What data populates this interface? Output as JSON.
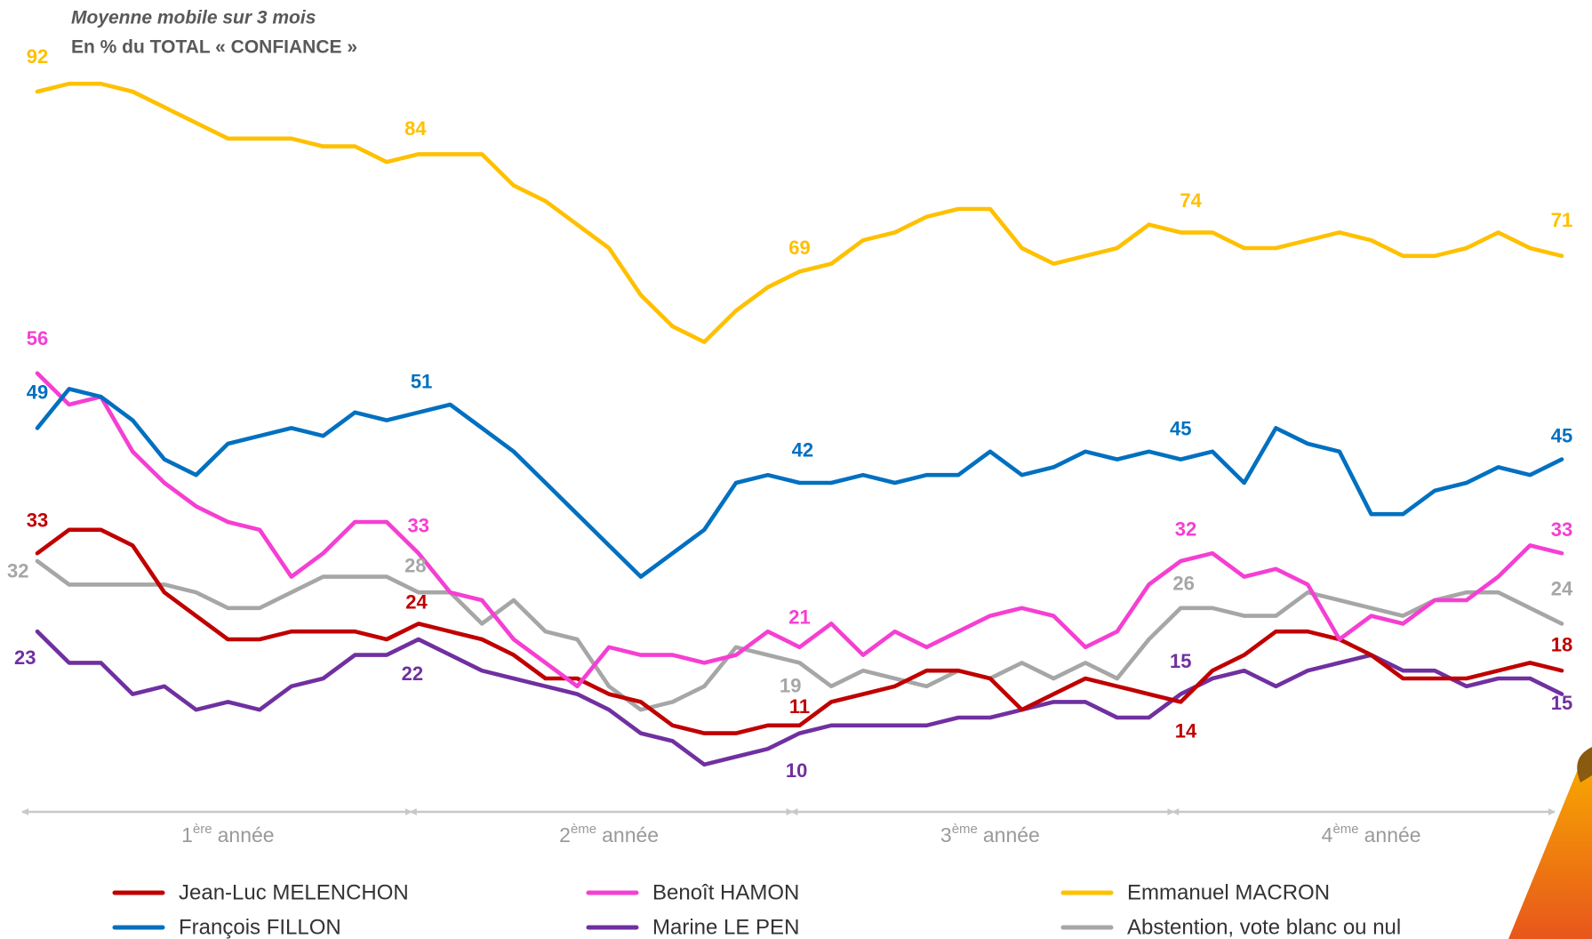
{
  "chart_data": {
    "type": "line",
    "title": "Moyenne mobile sur 3 mois",
    "subtitle": "En % du TOTAL « CONFIANCE »",
    "categories": [
      null,
      null,
      null,
      null,
      null,
      null,
      null,
      null,
      null,
      null,
      null,
      null,
      null,
      null,
      null,
      null,
      null,
      null,
      null,
      null,
      null,
      null,
      null,
      null,
      null,
      null,
      null,
      null,
      null,
      null,
      null,
      null,
      null,
      null,
      null,
      null,
      null,
      null,
      null,
      null,
      null,
      null,
      null,
      null,
      null,
      null,
      null,
      null,
      null
    ],
    "label_indices": [
      0,
      12,
      24,
      36,
      48
    ],
    "series": [
      {
        "name": "Jean-Luc MELENCHON",
        "color": "#c00000",
        "values": [
          33,
          36,
          36,
          34,
          28,
          25,
          22,
          22,
          23,
          23,
          23,
          22,
          24,
          23,
          22,
          20,
          17,
          17,
          15,
          14,
          11,
          10,
          10,
          11,
          11,
          14,
          15,
          16,
          18,
          18,
          17,
          13,
          15,
          17,
          16,
          15,
          14,
          18,
          20,
          23,
          23,
          22,
          20,
          17,
          17,
          17,
          18,
          19,
          18
        ]
      },
      {
        "name": "Benoît HAMON",
        "color": "#f53fd2",
        "values": [
          56,
          52,
          53,
          46,
          42,
          39,
          37,
          36,
          30,
          33,
          37,
          37,
          33,
          28,
          27,
          22,
          19,
          16,
          21,
          20,
          20,
          19,
          20,
          23,
          21,
          24,
          20,
          23,
          21,
          23,
          25,
          26,
          25,
          21,
          23,
          29,
          32,
          33,
          30,
          31,
          29,
          22,
          25,
          24,
          27,
          27,
          30,
          34,
          33
        ]
      },
      {
        "name": "Emmanuel MACRON",
        "color": "#ffc000",
        "values": [
          92,
          93,
          93,
          92,
          90,
          88,
          86,
          86,
          86,
          85,
          85,
          83,
          84,
          84,
          84,
          80,
          78,
          75,
          72,
          66,
          62,
          60,
          64,
          67,
          69,
          70,
          73,
          74,
          76,
          77,
          77,
          72,
          70,
          71,
          72,
          75,
          74,
          74,
          72,
          72,
          73,
          74,
          73,
          71,
          71,
          72,
          74,
          72,
          71
        ]
      },
      {
        "name": "François FILLON",
        "color": "#0070c0",
        "values": [
          49,
          54,
          53,
          50,
          45,
          43,
          47,
          48,
          49,
          48,
          51,
          50,
          51,
          52,
          49,
          46,
          42,
          38,
          34,
          30,
          33,
          36,
          42,
          43,
          42,
          42,
          43,
          42,
          43,
          43,
          46,
          43,
          44,
          46,
          45,
          46,
          45,
          46,
          42,
          49,
          47,
          46,
          38,
          38,
          41,
          42,
          44,
          43,
          45
        ]
      },
      {
        "name": "Marine LE PEN",
        "color": "#7030a0",
        "values": [
          23,
          19,
          19,
          15,
          16,
          13,
          14,
          13,
          16,
          17,
          20,
          20,
          22,
          20,
          18,
          17,
          16,
          15,
          13,
          10,
          9,
          6,
          7,
          8,
          10,
          11,
          11,
          11,
          11,
          12,
          12,
          13,
          14,
          14,
          12,
          12,
          15,
          17,
          18,
          16,
          18,
          19,
          20,
          18,
          18,
          16,
          17,
          17,
          15
        ]
      },
      {
        "name": "Abstention, vote blanc ou nul",
        "color": "#a6a6a6",
        "values": [
          32,
          29,
          29,
          29,
          29,
          28,
          26,
          26,
          28,
          30,
          30,
          30,
          28,
          28,
          24,
          27,
          23,
          22,
          16,
          13,
          14,
          16,
          21,
          20,
          19,
          16,
          18,
          17,
          16,
          18,
          17,
          19,
          17,
          19,
          17,
          22,
          26,
          26,
          25,
          25,
          28,
          27,
          26,
          25,
          27,
          28,
          28,
          26,
          24
        ]
      }
    ],
    "periods": [
      {
        "number": "1",
        "sup": "ère",
        "text": "année"
      },
      {
        "number": "2",
        "sup": "ème",
        "text": "année"
      },
      {
        "number": "3",
        "sup": "ème",
        "text": "année"
      },
      {
        "number": "4",
        "sup": "ème",
        "text": "année"
      }
    ],
    "legend": "bottom"
  }
}
